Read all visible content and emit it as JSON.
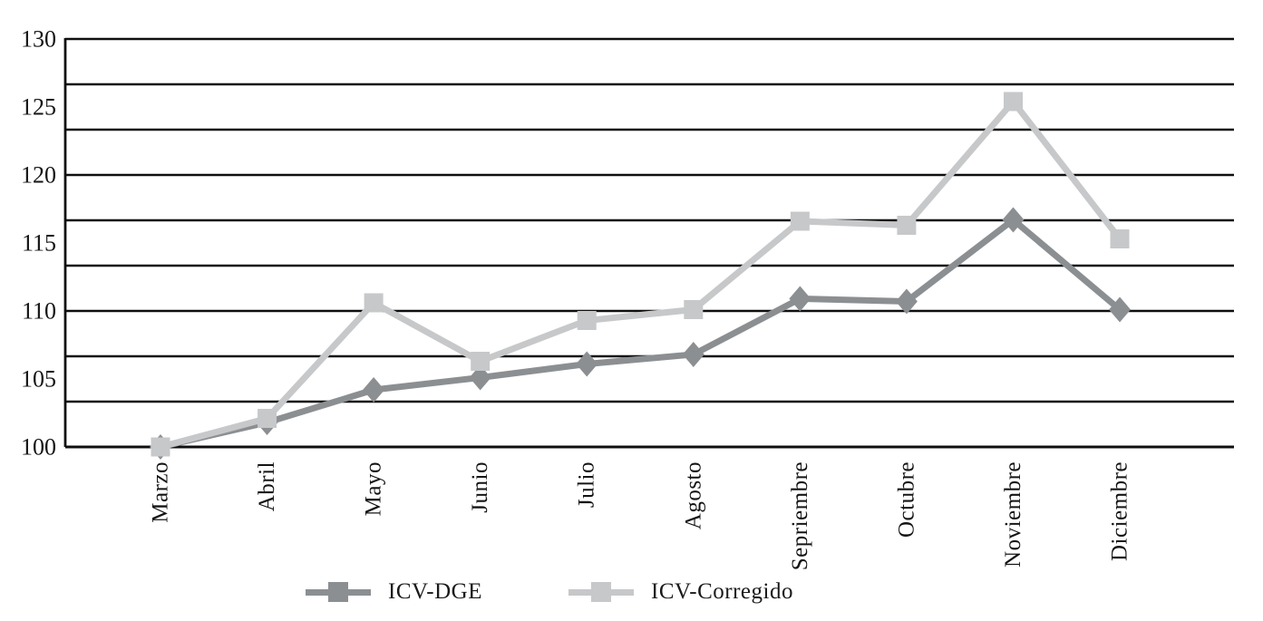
{
  "chart_data": {
    "type": "line",
    "categories": [
      "Marzo",
      "Abril",
      "Mayo",
      "Junio",
      "Julio",
      "Agosto",
      "Sepriembre",
      "Octubre",
      "Noviembre",
      "Diciembre"
    ],
    "series": [
      {
        "name": "ICV-DGE",
        "marker": "diamond",
        "color": "#8c8f92",
        "values": [
          100.0,
          101.8,
          104.2,
          105.1,
          106.1,
          106.8,
          110.9,
          110.7,
          116.7,
          110.1
        ]
      },
      {
        "name": "ICV-Corregido",
        "marker": "square",
        "color": "#c6c8ca",
        "values": [
          100.0,
          102.1,
          110.6,
          106.3,
          109.3,
          110.1,
          116.6,
          116.3,
          125.4,
          115.3
        ]
      }
    ],
    "title": "",
    "xlabel": "",
    "ylabel": "",
    "ylim": [
      100,
      130
    ],
    "yticks": [
      100,
      105,
      110,
      115,
      120,
      125,
      130
    ],
    "gridline_count": 10,
    "grid": "on",
    "legend_position": "bottom",
    "grid_color": "#0f0f0f",
    "text_color": "#141414"
  }
}
